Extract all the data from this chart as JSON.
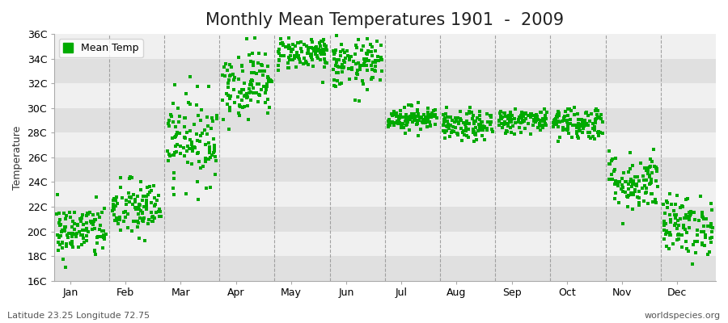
{
  "title": "Monthly Mean Temperatures 1901  -  2009",
  "ylabel": "Temperature",
  "xlabel_label": "Latitude 23.25 Longitude 72.75",
  "watermark": "worldspecies.org",
  "legend_label": "Mean Temp",
  "yticks": [
    16,
    18,
    20,
    22,
    24,
    26,
    28,
    30,
    32,
    34,
    36
  ],
  "ytick_labels": [
    "16C",
    "18C",
    "20C",
    "22C",
    "24C",
    "26C",
    "28C",
    "30C",
    "32C",
    "34C",
    "36C"
  ],
  "months": [
    "Jan",
    "Feb",
    "Mar",
    "Apr",
    "May",
    "Jun",
    "Jul",
    "Aug",
    "Sep",
    "Oct",
    "Nov",
    "Dec"
  ],
  "ylim": [
    16,
    36
  ],
  "n_years": 109,
  "monthly_means": [
    20.0,
    21.8,
    27.5,
    32.0,
    34.5,
    33.5,
    29.2,
    28.5,
    29.0,
    28.8,
    24.0,
    20.5
  ],
  "monthly_stds": [
    1.1,
    1.2,
    1.8,
    1.4,
    0.7,
    1.0,
    0.5,
    0.6,
    0.5,
    0.7,
    1.2,
    1.2
  ],
  "point_color": "#00aa00",
  "point_size": 6,
  "bg_color": "#ffffff",
  "band_light": "#f0f0f0",
  "band_dark": "#e0e0e0",
  "title_fontsize": 15,
  "axis_fontsize": 9,
  "tick_fontsize": 9,
  "legend_fontsize": 9,
  "seed": 42,
  "n_months": 12
}
